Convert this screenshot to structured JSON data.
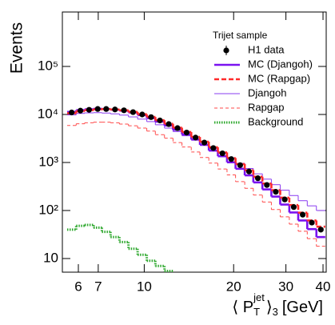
{
  "chart_data": {
    "type": "histogram",
    "log_x": true,
    "log_y": true,
    "y_label": "Events",
    "x_label": {
      "open": "⟨ P",
      "sub": "T",
      "sup": "jet",
      "close": "⟩",
      "close_sub": "3",
      "unit": "[GeV]"
    },
    "legend_title": "Trijet sample",
    "legend": "upper right",
    "bins": [
      5.5,
      5.9,
      6.3,
      6.75,
      7.2,
      7.7,
      8.25,
      8.85,
      9.5,
      10.2,
      10.9,
      11.7,
      12.5,
      13.4,
      14.4,
      15.4,
      16.5,
      17.7,
      19,
      20.3,
      21.8,
      23.3,
      25,
      26.8,
      28.7,
      30.8,
      33,
      35.4,
      38,
      40.7
    ],
    "series": [
      {
        "name": "H1 data",
        "color": "#000000",
        "style": "points",
        "values": [
          11000,
          12000,
          12500,
          13000,
          13000,
          12700,
          12200,
          11200,
          10000,
          8800,
          7500,
          6300,
          5200,
          4200,
          3300,
          2600,
          2000,
          1550,
          1180,
          880,
          650,
          470,
          340,
          245,
          170,
          118,
          82,
          56,
          40
        ]
      },
      {
        "name": "MC (Djangoh)",
        "color": "#7a12f0",
        "style": "thick",
        "values": [
          11300,
          12300,
          12800,
          13100,
          13000,
          12600,
          12000,
          11000,
          9700,
          8400,
          7100,
          5900,
          4800,
          3850,
          3000,
          2330,
          1770,
          1350,
          1010,
          740,
          540,
          385,
          275,
          195,
          133,
          91,
          62,
          41,
          28
        ]
      },
      {
        "name": "MC (Rapgap)",
        "color": "#ff2a2a",
        "style": "thick-dashed",
        "values": [
          10600,
          11700,
          12300,
          12800,
          12900,
          12700,
          12200,
          11300,
          10100,
          8900,
          7600,
          6400,
          5300,
          4300,
          3400,
          2700,
          2080,
          1620,
          1240,
          930,
          690,
          505,
          365,
          265,
          185,
          130,
          90,
          62,
          46
        ]
      },
      {
        "name": "Djangoh",
        "color": "#8a3cf0",
        "style": "thin",
        "values": [
          9800,
          10500,
          10800,
          10900,
          10700,
          10300,
          9700,
          8900,
          8000,
          7100,
          6100,
          5200,
          4400,
          3600,
          3000,
          2400,
          1950,
          1550,
          1230,
          960,
          750,
          580,
          450,
          345,
          265,
          205,
          160,
          125,
          100
        ]
      },
      {
        "name": "Rapgap",
        "color": "#ff4a4a",
        "style": "thin-dashed",
        "values": [
          5900,
          6400,
          6700,
          6900,
          6900,
          6700,
          6300,
          5800,
          5200,
          4500,
          3800,
          3200,
          2600,
          2100,
          1650,
          1270,
          970,
          730,
          550,
          400,
          290,
          210,
          150,
          105,
          74,
          52,
          37,
          26,
          18
        ]
      },
      {
        "name": "Background",
        "color": "#2ea82e",
        "style": "dotted",
        "values": [
          40,
          48,
          50,
          44,
          36,
          28,
          22,
          16,
          12,
          9,
          7,
          5.5,
          null,
          null,
          null,
          null,
          null,
          null,
          null,
          null,
          null,
          null,
          null,
          null,
          null,
          null,
          null,
          null,
          null
        ]
      }
    ],
    "xlim": [
      5.3,
      41
    ],
    "ylim": [
      5.2,
      1360000
    ],
    "xticks": [
      6,
      7,
      10,
      20,
      30,
      40
    ],
    "yticks": [
      10,
      {
        "value": 100,
        "label": "10²"
      },
      {
        "value": 1000,
        "label": "10³"
      },
      {
        "value": 10000,
        "label": "10⁴"
      },
      {
        "value": 100000,
        "label": "10⁵"
      }
    ]
  }
}
